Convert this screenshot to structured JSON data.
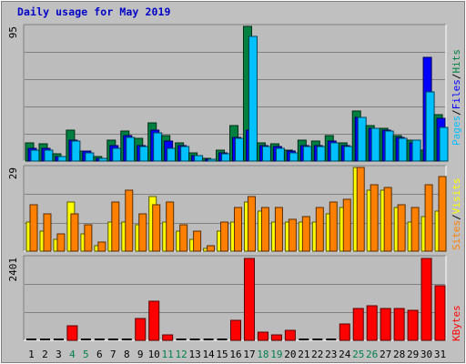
{
  "title": "Daily usage for May 2019",
  "colors": {
    "background": "#c0c0c0",
    "plot_bg": "#bcbcbc",
    "hits": "#008040",
    "files": "#0000ff",
    "pages": "#00c0ff",
    "visits": "#ffff00",
    "sites": "#ff8000",
    "kbytes": "#ff0000",
    "weekend_label": "#00804a",
    "weekday_label": "#000000"
  },
  "chart_data": [
    {
      "type": "bar",
      "title": "Daily usage for May 2019",
      "categories": [
        "1",
        "2",
        "3",
        "4",
        "5",
        "6",
        "7",
        "8",
        "9",
        "10",
        "11",
        "12",
        "13",
        "14",
        "15",
        "16",
        "17",
        "18",
        "19",
        "20",
        "21",
        "22",
        "23",
        "24",
        "25",
        "26",
        "27",
        "28",
        "29",
        "30",
        "31"
      ],
      "weekend_days": [
        4,
        5,
        11,
        12,
        18,
        19,
        25,
        26
      ],
      "ylim": [
        0,
        95
      ],
      "max_label": "95",
      "side_labels": [
        "Pages",
        "Files",
        "Hits"
      ],
      "series": [
        {
          "name": "Hits",
          "values": [
            13,
            12,
            5,
            22,
            7,
            3,
            15,
            21,
            16,
            27,
            18,
            13,
            6,
            2,
            8,
            25,
            95,
            13,
            12,
            8,
            15,
            14,
            18,
            13,
            35,
            25,
            23,
            18,
            15,
            8,
            33
          ]
        },
        {
          "name": "Files",
          "values": [
            9,
            9,
            3,
            15,
            7,
            2,
            11,
            18,
            11,
            22,
            14,
            11,
            4,
            1,
            6,
            17,
            22,
            11,
            10,
            7,
            11,
            11,
            14,
            11,
            31,
            23,
            22,
            17,
            13,
            73,
            30
          ]
        },
        {
          "name": "Pages",
          "values": [
            8,
            8,
            3,
            14,
            6,
            2,
            9,
            17,
            10,
            20,
            9,
            10,
            4,
            1,
            5,
            16,
            88,
            10,
            9,
            6,
            10,
            10,
            13,
            10,
            31,
            23,
            21,
            16,
            15,
            49,
            24
          ]
        }
      ]
    },
    {
      "type": "bar",
      "categories": [
        "1",
        "2",
        "3",
        "4",
        "5",
        "6",
        "7",
        "8",
        "9",
        "10",
        "11",
        "12",
        "13",
        "14",
        "15",
        "16",
        "17",
        "18",
        "19",
        "20",
        "21",
        "22",
        "23",
        "24",
        "25",
        "26",
        "27",
        "28",
        "29",
        "30",
        "31"
      ],
      "ylim": [
        0,
        29
      ],
      "max_label": "29",
      "side_labels": [
        "Sites",
        "Visits"
      ],
      "series": [
        {
          "name": "Visits",
          "values": [
            10,
            7,
            4,
            17,
            6,
            2,
            10,
            10,
            9,
            19,
            10,
            7,
            4,
            1,
            7,
            10,
            17,
            14,
            10,
            10,
            10,
            10,
            13,
            15,
            29,
            21,
            21,
            15,
            10,
            12,
            14
          ]
        },
        {
          "name": "Sites",
          "values": [
            16,
            13,
            6,
            13,
            9,
            3,
            17,
            21,
            13,
            16,
            17,
            9,
            7,
            2,
            10,
            15,
            19,
            15,
            15,
            11,
            12,
            15,
            17,
            18,
            29,
            23,
            22,
            16,
            15,
            23,
            26
          ]
        }
      ]
    },
    {
      "type": "bar",
      "categories": [
        "1",
        "2",
        "3",
        "4",
        "5",
        "6",
        "7",
        "8",
        "9",
        "10",
        "11",
        "12",
        "13",
        "14",
        "15",
        "16",
        "17",
        "18",
        "19",
        "20",
        "21",
        "22",
        "23",
        "24",
        "25",
        "26",
        "27",
        "28",
        "29",
        "30",
        "31"
      ],
      "ylim": [
        0,
        2401
      ],
      "max_label": "2401",
      "side_labels": [
        "KBytes"
      ],
      "series": [
        {
          "name": "KBytes",
          "values": [
            0,
            0,
            0,
            440,
            0,
            0,
            0,
            0,
            650,
            1150,
            160,
            0,
            0,
            0,
            0,
            580,
            2401,
            250,
            150,
            300,
            0,
            0,
            0,
            480,
            940,
            1010,
            940,
            930,
            890,
            2401,
            1610
          ]
        }
      ]
    }
  ]
}
